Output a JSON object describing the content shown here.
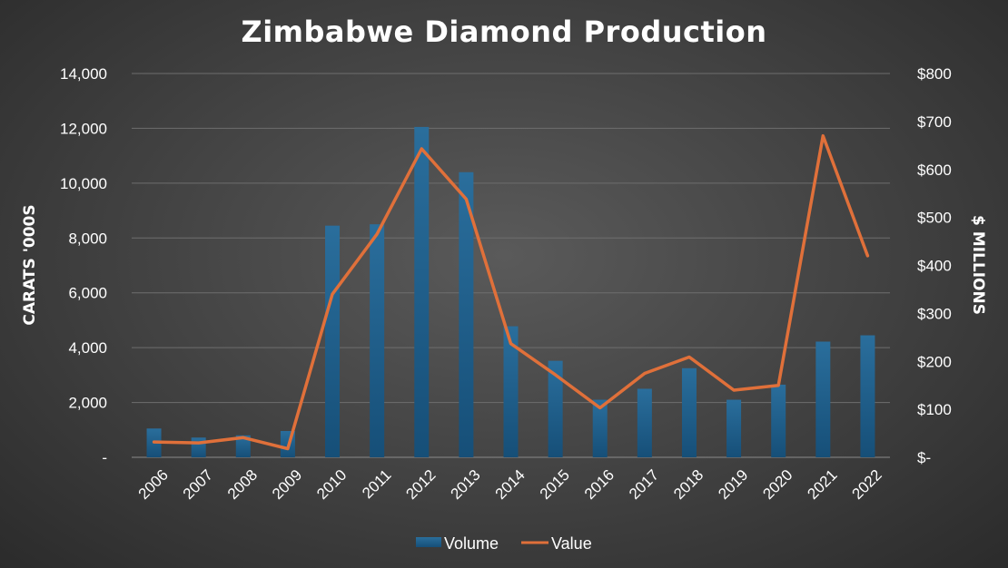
{
  "chart_data": {
    "type": "bar",
    "title": "Zimbabwe Diamond Production",
    "categories": [
      "2006",
      "2007",
      "2008",
      "2009",
      "2010",
      "2011",
      "2012",
      "2013",
      "2014",
      "2015",
      "2016",
      "2017",
      "2018",
      "2019",
      "2020",
      "2021",
      "2022"
    ],
    "series": [
      {
        "name": "Volume",
        "type": "bar",
        "axis": "left",
        "color": "#1f5f8b",
        "values": [
          1050,
          720,
          800,
          960,
          8450,
          8500,
          12050,
          10400,
          4780,
          3520,
          2100,
          2500,
          3250,
          2100,
          2650,
          4220,
          4450
        ]
      },
      {
        "name": "Value",
        "type": "line",
        "axis": "right",
        "color": "#e0703a",
        "values": [
          32,
          30,
          41,
          18,
          340,
          465,
          643,
          538,
          237,
          172,
          103,
          175,
          209,
          140,
          150,
          670,
          420
        ]
      }
    ],
    "ylabel": "CARATS '000S",
    "y2label": "$ MILLIONS",
    "ylim": [
      0,
      14000
    ],
    "y2lim": [
      0,
      800
    ],
    "yticks": [
      {
        "value": 0,
        "label": "-"
      },
      {
        "value": 2000,
        "label": "2,000"
      },
      {
        "value": 4000,
        "label": "4,000"
      },
      {
        "value": 6000,
        "label": "6,000"
      },
      {
        "value": 8000,
        "label": "8,000"
      },
      {
        "value": 10000,
        "label": "10,000"
      },
      {
        "value": 12000,
        "label": "12,000"
      },
      {
        "value": 14000,
        "label": "14,000"
      }
    ],
    "y2ticks": [
      {
        "value": 0,
        "label": "$-"
      },
      {
        "value": 100,
        "label": "$100"
      },
      {
        "value": 200,
        "label": "$200"
      },
      {
        "value": 300,
        "label": "$300"
      },
      {
        "value": 400,
        "label": "$400"
      },
      {
        "value": 500,
        "label": "$500"
      },
      {
        "value": 600,
        "label": "$600"
      },
      {
        "value": 700,
        "label": "$700"
      },
      {
        "value": 800,
        "label": "$800"
      }
    ],
    "grid": true,
    "legend_position": "bottom"
  }
}
